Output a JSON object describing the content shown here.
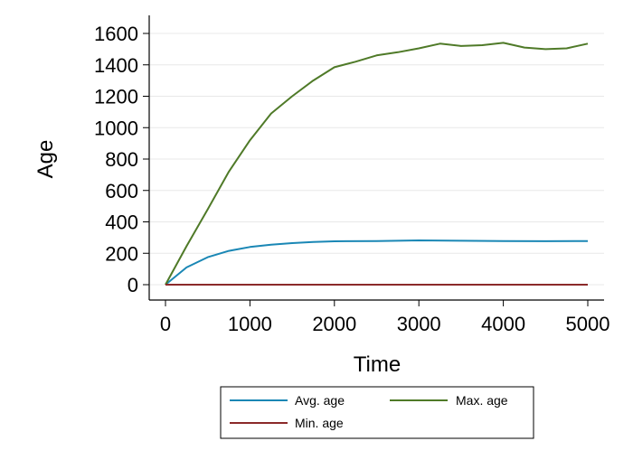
{
  "chart_data": {
    "type": "line",
    "xlabel": "Time",
    "ylabel": "Age",
    "xlim": [
      0,
      5000
    ],
    "ylim": [
      0,
      1600
    ],
    "xticks": [
      "0",
      "1000",
      "2000",
      "3000",
      "4000",
      "5000"
    ],
    "yticks": [
      "0",
      "200",
      "400",
      "600",
      "800",
      "1000",
      "1200",
      "1400",
      "1600"
    ],
    "grid": true,
    "legend_position": "bottom",
    "series": [
      {
        "name": "Avg. age",
        "color": "#1a87b5",
        "x": [
          0,
          250,
          500,
          750,
          1000,
          1250,
          1500,
          1750,
          2000,
          2500,
          3000,
          3500,
          4000,
          4500,
          5000
        ],
        "y": [
          0,
          110,
          175,
          215,
          240,
          255,
          265,
          272,
          276,
          278,
          282,
          280,
          278,
          277,
          278
        ]
      },
      {
        "name": "Max. age",
        "color": "#4f7a28",
        "x": [
          0,
          250,
          500,
          750,
          1000,
          1250,
          1500,
          1750,
          2000,
          2250,
          2500,
          2750,
          3000,
          3250,
          3500,
          3750,
          4000,
          4250,
          4500,
          4750,
          5000
        ],
        "y": [
          0,
          245,
          480,
          720,
          920,
          1090,
          1200,
          1300,
          1385,
          1420,
          1460,
          1480,
          1505,
          1535,
          1520,
          1525,
          1540,
          1510,
          1500,
          1505,
          1535
        ]
      },
      {
        "name": "Min. age",
        "color": "#8b2a2a",
        "x": [
          0,
          1000,
          2000,
          3000,
          4000,
          5000
        ],
        "y": [
          0,
          0,
          0,
          0,
          0,
          0
        ]
      }
    ]
  }
}
